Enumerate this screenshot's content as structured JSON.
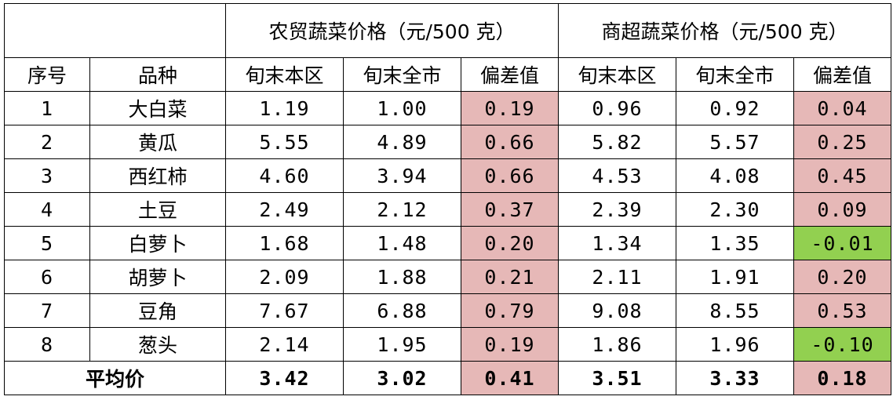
{
  "groups": {
    "farm": "农贸蔬菜价格（元/500 克）",
    "mall": "商超蔬菜价格（元/500 克）"
  },
  "columns": {
    "index": "序号",
    "variety": "品种",
    "farm_local": "旬末本区",
    "farm_city": "旬末全市",
    "farm_diff": "偏差值",
    "mall_local": "旬末本区",
    "mall_city": "旬末全市",
    "mall_diff": "偏差值"
  },
  "rows": [
    {
      "index": "1",
      "variety": "大白菜",
      "farm_local": "1.19",
      "farm_city": "1.00",
      "farm_diff": "0.19",
      "mall_local": "0.96",
      "mall_city": "0.92",
      "mall_diff": "0.04"
    },
    {
      "index": "2",
      "variety": "黄瓜",
      "farm_local": "5.55",
      "farm_city": "4.89",
      "farm_diff": "0.66",
      "mall_local": "5.82",
      "mall_city": "5.57",
      "mall_diff": "0.25"
    },
    {
      "index": "3",
      "variety": "西红柿",
      "farm_local": "4.60",
      "farm_city": "3.94",
      "farm_diff": "0.66",
      "mall_local": "4.53",
      "mall_city": "4.08",
      "mall_diff": "0.45"
    },
    {
      "index": "4",
      "variety": "土豆",
      "farm_local": "2.49",
      "farm_city": "2.12",
      "farm_diff": "0.37",
      "mall_local": "2.39",
      "mall_city": "2.30",
      "mall_diff": "0.09"
    },
    {
      "index": "5",
      "variety": "白萝卜",
      "farm_local": "1.68",
      "farm_city": "1.48",
      "farm_diff": "0.20",
      "mall_local": "1.34",
      "mall_city": "1.35",
      "mall_diff": "-0.01"
    },
    {
      "index": "6",
      "variety": "胡萝卜",
      "farm_local": "2.09",
      "farm_city": "1.88",
      "farm_diff": "0.21",
      "mall_local": "2.11",
      "mall_city": "1.91",
      "mall_diff": "0.20"
    },
    {
      "index": "7",
      "variety": "豆角",
      "farm_local": "7.67",
      "farm_city": "6.88",
      "farm_diff": "0.79",
      "mall_local": "9.08",
      "mall_city": "8.55",
      "mall_diff": "0.53"
    },
    {
      "index": "8",
      "variety": "葱头",
      "farm_local": "2.14",
      "farm_city": "1.95",
      "farm_diff": "0.19",
      "mall_local": "1.86",
      "mall_city": "1.96",
      "mall_diff": "-0.10"
    }
  ],
  "average": {
    "label": "平均价",
    "farm_local": "3.42",
    "farm_city": "3.02",
    "farm_diff": "0.41",
    "mall_local": "3.51",
    "mall_city": "3.33",
    "mall_diff": "0.18"
  },
  "colors": {
    "positive_diff_fill": "#e6b8b7",
    "negative_diff_fill": "#92d050",
    "border": "#000000"
  }
}
